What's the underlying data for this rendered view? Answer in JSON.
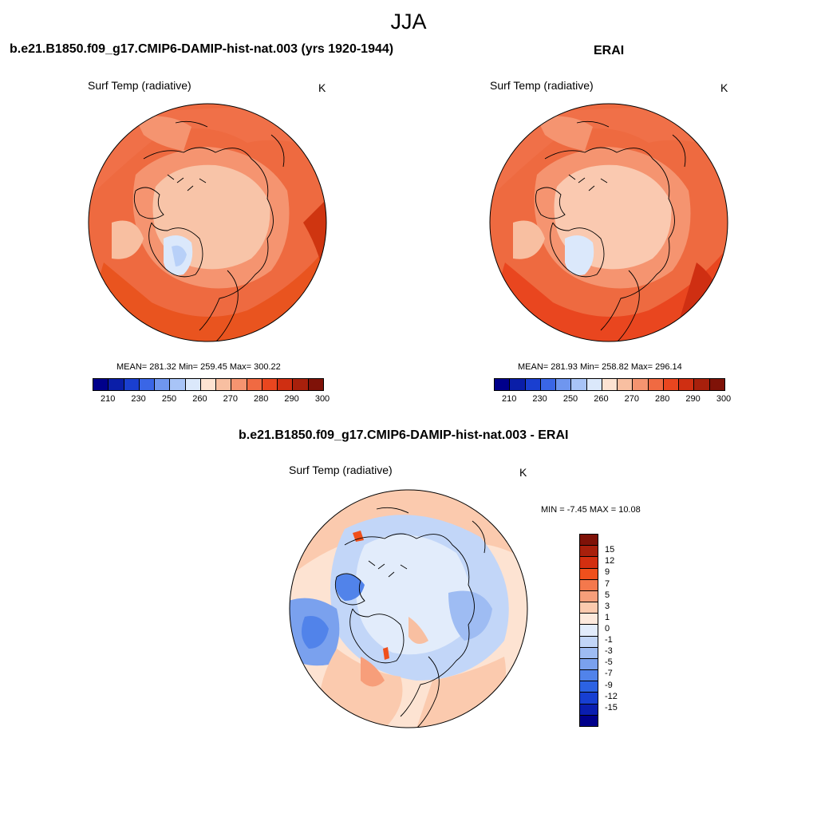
{
  "page": {
    "season": "JJA"
  },
  "panels": [
    {
      "title": "b.e21.B1850.f09_g17.CMIP6-DAMIP-hist-nat.003 (yrs 1920-1944)",
      "variable": "Surf Temp (radiative)",
      "unit": "K",
      "stats": "MEAN= 281.32  Min= 259.45  Max= 300.22"
    },
    {
      "title": "ERAI",
      "variable": "Surf Temp (radiative)",
      "unit": "K",
      "stats": "MEAN= 281.93  Min= 258.82  Max= 296.14"
    },
    {
      "title": "b.e21.B1850.f09_g17.CMIP6-DAMIP-hist-nat.003 - ERAI",
      "variable": "Surf Temp (radiative)",
      "unit": "K",
      "stats": "MIN =  -7.45 MAX =  10.08"
    }
  ],
  "colorbars": {
    "absolute": {
      "colors": [
        "#00008b",
        "#0a1ea8",
        "#1a3fd0",
        "#3a66e6",
        "#6f96ef",
        "#a8c4f7",
        "#dbe8fb",
        "#fde3d2",
        "#f8bfa1",
        "#f59470",
        "#f06a42",
        "#e9461f",
        "#cf2f12",
        "#a8200c",
        "#7f1208"
      ],
      "labels": [
        "210",
        "230",
        "250",
        "260",
        "270",
        "280",
        "290",
        "300"
      ]
    },
    "difference": {
      "colors": [
        "#7f1208",
        "#a8200c",
        "#d32f10",
        "#f0501c",
        "#f4784c",
        "#f79e7a",
        "#fbcaae",
        "#fde9dc",
        "#e2ecfb",
        "#c2d6f8",
        "#9ebcf3",
        "#7aa1ee",
        "#5183ea",
        "#2c62e3",
        "#173fd2",
        "#0a1eb0",
        "#00008b"
      ],
      "labels": [
        "15",
        "12",
        "9",
        "7",
        "5",
        "3",
        "1",
        "0",
        "-1",
        "-3",
        "-5",
        "-7",
        "-9",
        "-12",
        "-15"
      ]
    }
  }
}
